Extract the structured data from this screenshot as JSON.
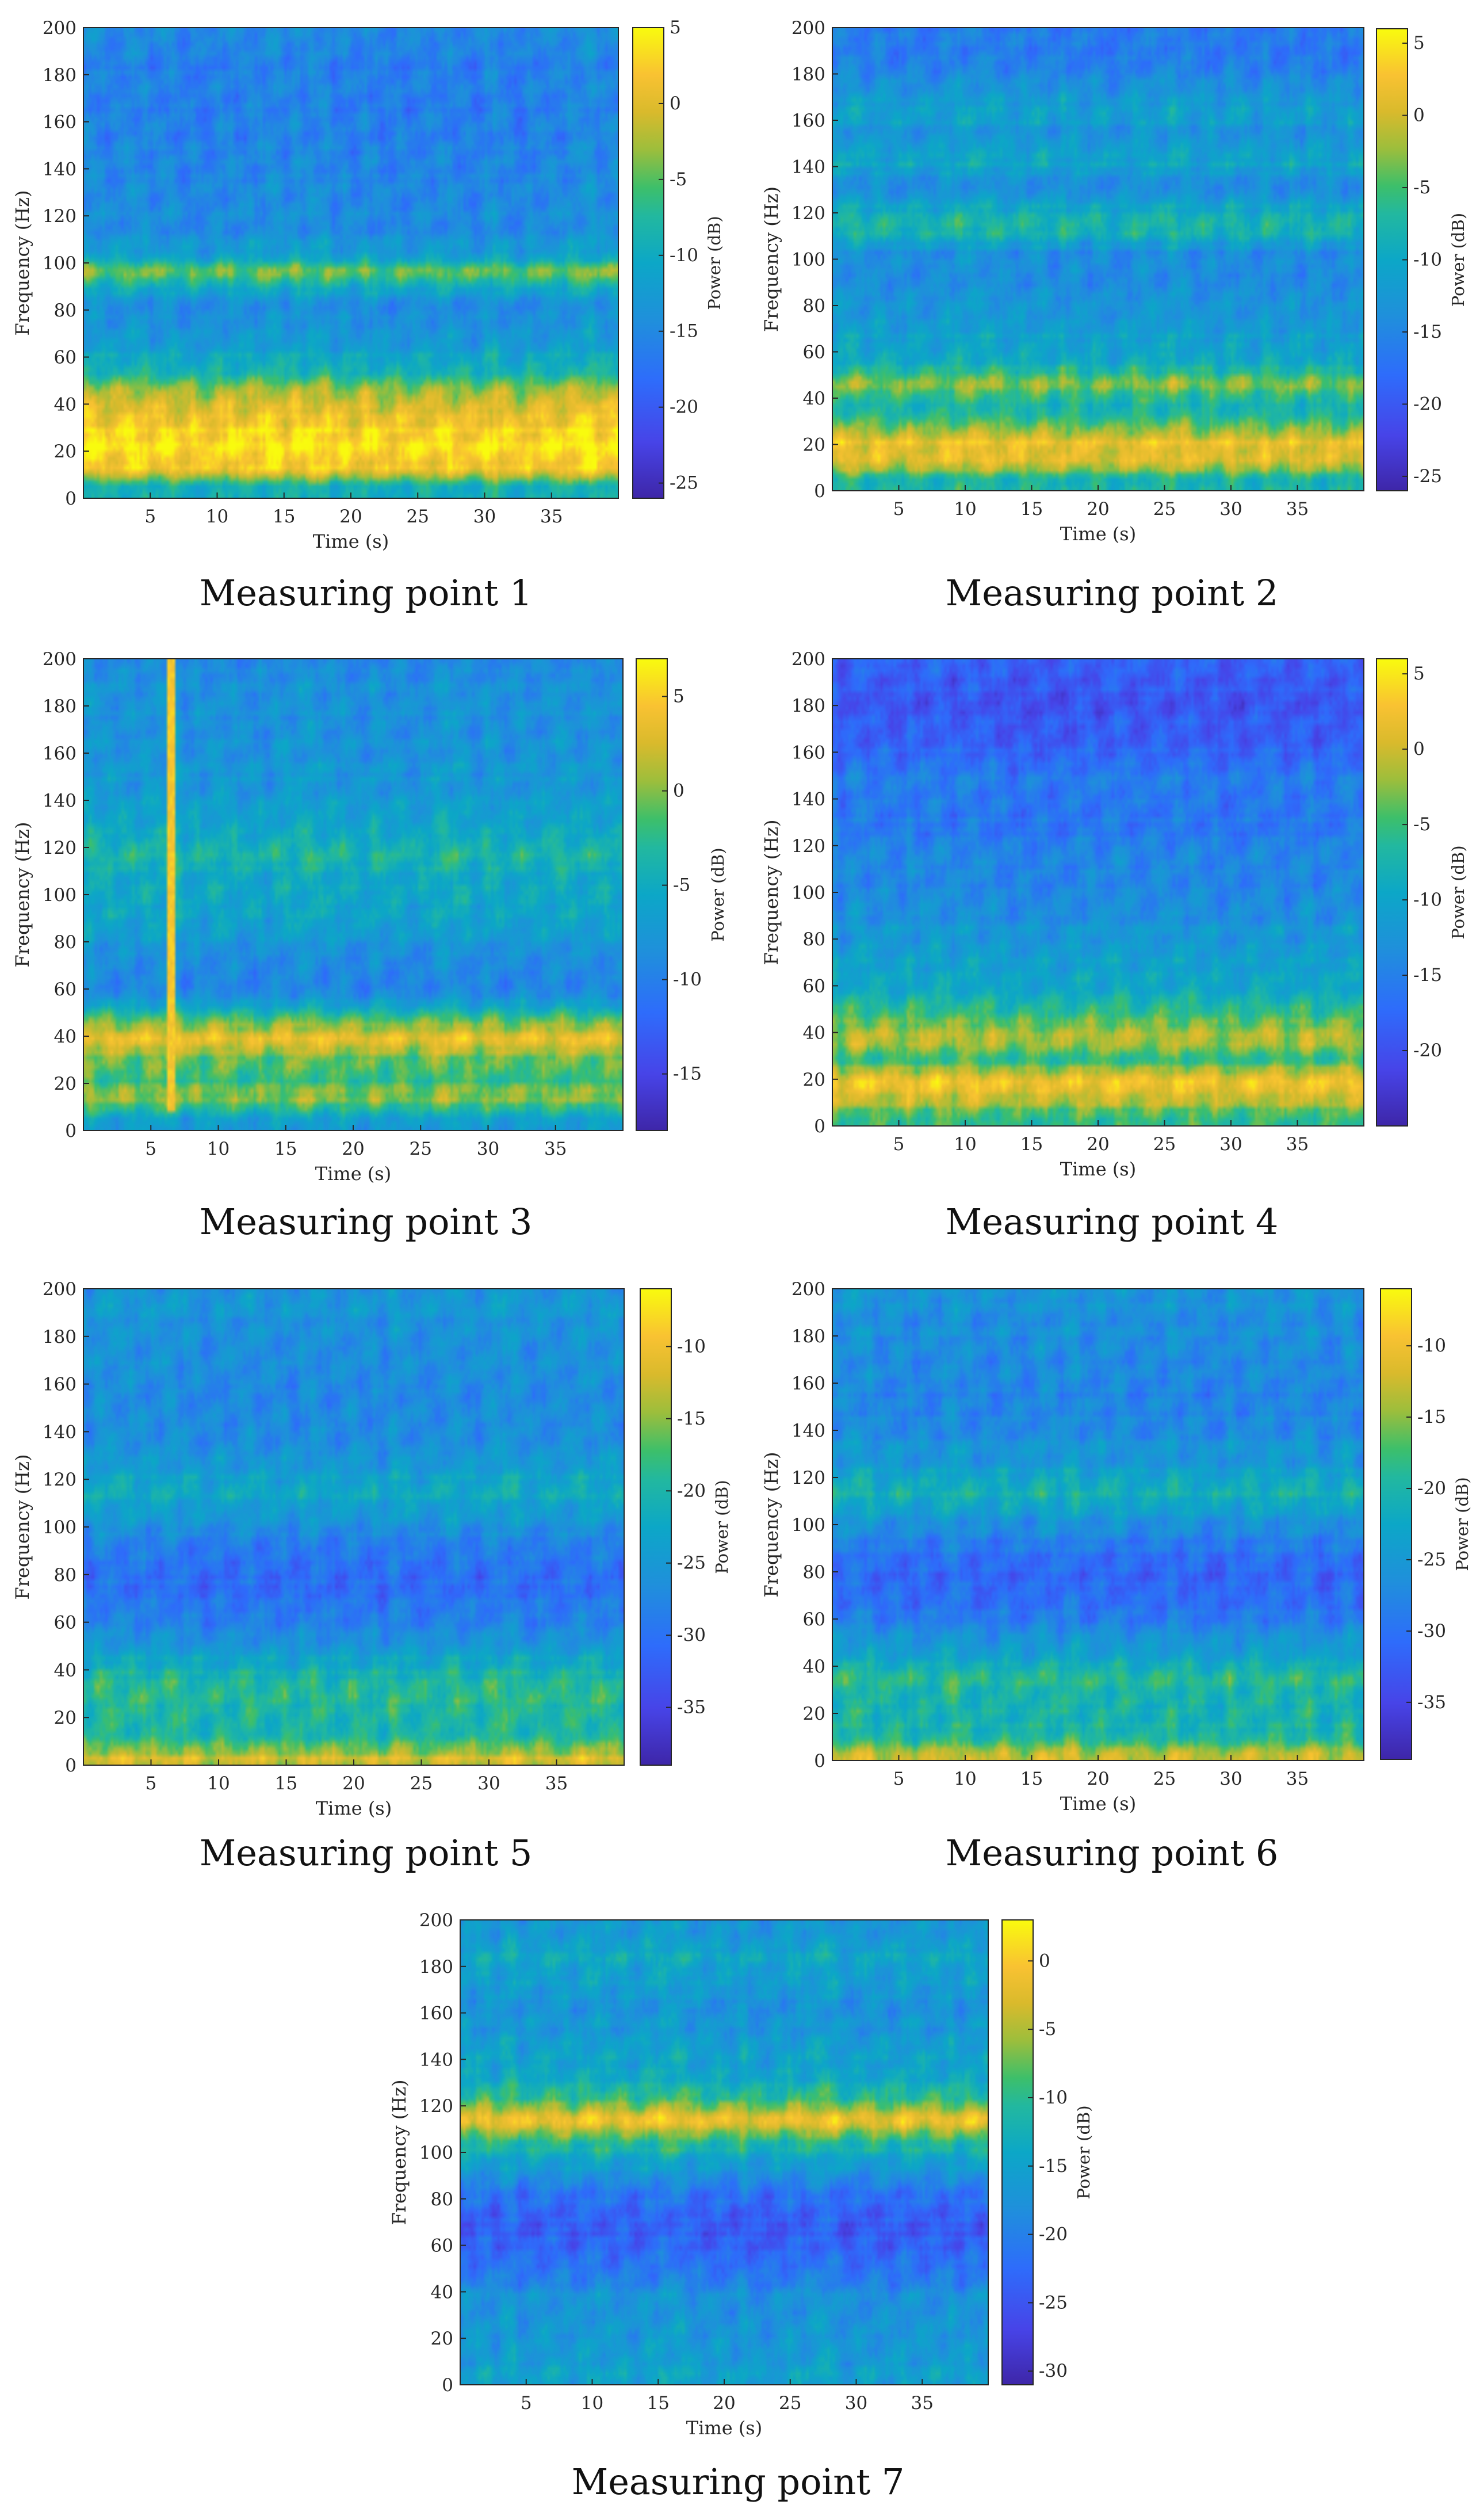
{
  "chart_data": [
    {
      "type": "heatmap",
      "caption": "Measuring point 1",
      "xlabel": "Time (s)",
      "ylabel": "Frequency (Hz)",
      "colorbar_label": "Power (dB)",
      "xlim": [
        0,
        40
      ],
      "ylim": [
        0,
        200
      ],
      "xticks": [
        "5",
        "10",
        "15",
        "20",
        "25",
        "30",
        "35"
      ],
      "yticks": [
        "0",
        "20",
        "40",
        "60",
        "80",
        "100",
        "120",
        "140",
        "160",
        "180",
        "200"
      ],
      "clim": [
        -26,
        5
      ],
      "cticks": [
        "5",
        "0",
        "-5",
        "-10",
        "-15",
        "-20",
        "-25"
      ],
      "bands": [
        {
          "f": 5,
          "level": 0.52
        },
        {
          "f": 12,
          "level": 0.9
        },
        {
          "f": 20,
          "level": 0.96
        },
        {
          "f": 28,
          "level": 0.94
        },
        {
          "f": 36,
          "level": 0.86
        },
        {
          "f": 44,
          "level": 0.78
        },
        {
          "f": 52,
          "level": 0.6
        },
        {
          "f": 62,
          "level": 0.48
        },
        {
          "f": 72,
          "level": 0.4
        },
        {
          "f": 82,
          "level": 0.38
        },
        {
          "f": 90,
          "level": 0.52
        },
        {
          "f": 96,
          "level": 0.74
        },
        {
          "f": 104,
          "level": 0.44
        },
        {
          "f": 115,
          "level": 0.38
        },
        {
          "f": 130,
          "level": 0.36
        },
        {
          "f": 148,
          "level": 0.34
        },
        {
          "f": 165,
          "level": 0.32
        },
        {
          "f": 182,
          "level": 0.33
        },
        {
          "f": 196,
          "level": 0.35
        }
      ]
    },
    {
      "type": "heatmap",
      "caption": "Measuring point 2",
      "xlabel": "Time (s)",
      "ylabel": "Frequency (Hz)",
      "colorbar_label": "Power (dB)",
      "xlim": [
        0,
        40
      ],
      "ylim": [
        0,
        200
      ],
      "xticks": [
        "5",
        "10",
        "15",
        "20",
        "25",
        "30",
        "35"
      ],
      "yticks": [
        "0",
        "20",
        "40",
        "60",
        "80",
        "100",
        "120",
        "140",
        "160",
        "180",
        "200"
      ],
      "clim": [
        -26,
        6
      ],
      "cticks": [
        "5",
        "0",
        "-5",
        "-10",
        "-15",
        "-20",
        "-25"
      ],
      "bands": [
        {
          "f": 5,
          "level": 0.58
        },
        {
          "f": 12,
          "level": 0.82
        },
        {
          "f": 20,
          "level": 0.88
        },
        {
          "f": 28,
          "level": 0.7
        },
        {
          "f": 36,
          "level": 0.56
        },
        {
          "f": 46,
          "level": 0.72
        },
        {
          "f": 56,
          "level": 0.52
        },
        {
          "f": 68,
          "level": 0.46
        },
        {
          "f": 80,
          "level": 0.42
        },
        {
          "f": 92,
          "level": 0.38
        },
        {
          "f": 102,
          "level": 0.36
        },
        {
          "f": 112,
          "level": 0.58
        },
        {
          "f": 122,
          "level": 0.5
        },
        {
          "f": 132,
          "level": 0.38
        },
        {
          "f": 142,
          "level": 0.5
        },
        {
          "f": 152,
          "level": 0.4
        },
        {
          "f": 164,
          "level": 0.48
        },
        {
          "f": 176,
          "level": 0.38
        },
        {
          "f": 190,
          "level": 0.3
        }
      ]
    },
    {
      "type": "heatmap",
      "caption": "Measuring point 3",
      "xlabel": "Time (s)",
      "ylabel": "Frequency (Hz)",
      "colorbar_label": "Power (dB)",
      "xlim": [
        0,
        40
      ],
      "ylim": [
        0,
        200
      ],
      "xticks": [
        "5",
        "10",
        "15",
        "20",
        "25",
        "30",
        "35"
      ],
      "yticks": [
        "0",
        "20",
        "40",
        "60",
        "80",
        "100",
        "120",
        "140",
        "160",
        "180",
        "200"
      ],
      "clim": [
        -18,
        7
      ],
      "cticks": [
        "5",
        "0",
        "-5",
        "-10",
        "-15"
      ],
      "bands": [
        {
          "f": 5,
          "level": 0.46
        },
        {
          "f": 14,
          "level": 0.74
        },
        {
          "f": 22,
          "level": 0.62
        },
        {
          "f": 30,
          "level": 0.68
        },
        {
          "f": 38,
          "level": 0.88
        },
        {
          "f": 46,
          "level": 0.7
        },
        {
          "f": 56,
          "level": 0.4
        },
        {
          "f": 64,
          "level": 0.34
        },
        {
          "f": 74,
          "level": 0.38
        },
        {
          "f": 84,
          "level": 0.44
        },
        {
          "f": 96,
          "level": 0.5
        },
        {
          "f": 108,
          "level": 0.52
        },
        {
          "f": 118,
          "level": 0.58
        },
        {
          "f": 130,
          "level": 0.48
        },
        {
          "f": 142,
          "level": 0.44
        },
        {
          "f": 156,
          "level": 0.42
        },
        {
          "f": 170,
          "level": 0.4
        },
        {
          "f": 184,
          "level": 0.4
        },
        {
          "f": 196,
          "level": 0.38
        }
      ]
    },
    {
      "type": "heatmap",
      "caption": "Measuring point 4",
      "xlabel": "Time (s)",
      "ylabel": "Frequency (Hz)",
      "colorbar_label": "Power (dB)",
      "xlim": [
        0,
        40
      ],
      "ylim": [
        0,
        200
      ],
      "xticks": [
        "5",
        "10",
        "15",
        "20",
        "25",
        "30",
        "35"
      ],
      "yticks": [
        "0",
        "20",
        "40",
        "60",
        "80",
        "100",
        "120",
        "140",
        "160",
        "180",
        "200"
      ],
      "clim": [
        -25,
        6
      ],
      "cticks": [
        "5",
        "0",
        "-5",
        "-10",
        "-15",
        "-20"
      ],
      "bands": [
        {
          "f": 4,
          "level": 0.62
        },
        {
          "f": 12,
          "level": 0.82
        },
        {
          "f": 20,
          "level": 0.88
        },
        {
          "f": 28,
          "level": 0.62
        },
        {
          "f": 38,
          "level": 0.8
        },
        {
          "f": 46,
          "level": 0.66
        },
        {
          "f": 56,
          "level": 0.52
        },
        {
          "f": 66,
          "level": 0.48
        },
        {
          "f": 76,
          "level": 0.44
        },
        {
          "f": 88,
          "level": 0.4
        },
        {
          "f": 100,
          "level": 0.34
        },
        {
          "f": 112,
          "level": 0.36
        },
        {
          "f": 124,
          "level": 0.3
        },
        {
          "f": 136,
          "level": 0.3
        },
        {
          "f": 148,
          "level": 0.32
        },
        {
          "f": 160,
          "level": 0.24
        },
        {
          "f": 170,
          "level": 0.2
        },
        {
          "f": 182,
          "level": 0.18
        },
        {
          "f": 194,
          "level": 0.22
        }
      ]
    },
    {
      "type": "heatmap",
      "caption": "Measuring point 5",
      "xlabel": "Time (s)",
      "ylabel": "Frequency (Hz)",
      "colorbar_label": "Power (dB)",
      "xlim": [
        0,
        40
      ],
      "ylim": [
        0,
        200
      ],
      "xticks": [
        "5",
        "10",
        "15",
        "20",
        "25",
        "30",
        "35"
      ],
      "yticks": [
        "0",
        "20",
        "40",
        "60",
        "80",
        "100",
        "120",
        "140",
        "160",
        "180",
        "200"
      ],
      "clim": [
        -39,
        -6
      ],
      "cticks": [
        "-10",
        "-15",
        "-20",
        "-25",
        "-30",
        "-35"
      ],
      "bands": [
        {
          "f": 3,
          "level": 0.82
        },
        {
          "f": 10,
          "level": 0.62
        },
        {
          "f": 18,
          "level": 0.56
        },
        {
          "f": 26,
          "level": 0.6
        },
        {
          "f": 34,
          "level": 0.62
        },
        {
          "f": 42,
          "level": 0.52
        },
        {
          "f": 52,
          "level": 0.4
        },
        {
          "f": 62,
          "level": 0.32
        },
        {
          "f": 70,
          "level": 0.28
        },
        {
          "f": 78,
          "level": 0.26
        },
        {
          "f": 88,
          "level": 0.3
        },
        {
          "f": 100,
          "level": 0.38
        },
        {
          "f": 114,
          "level": 0.52
        },
        {
          "f": 126,
          "level": 0.44
        },
        {
          "f": 138,
          "level": 0.38
        },
        {
          "f": 150,
          "level": 0.36
        },
        {
          "f": 164,
          "level": 0.38
        },
        {
          "f": 178,
          "level": 0.4
        },
        {
          "f": 192,
          "level": 0.42
        }
      ]
    },
    {
      "type": "heatmap",
      "caption": "Measuring point 6",
      "xlabel": "Time (s)",
      "ylabel": "Frequency (Hz)",
      "colorbar_label": "Power (dB)",
      "xlim": [
        0,
        40
      ],
      "ylim": [
        0,
        200
      ],
      "xticks": [
        "5",
        "10",
        "15",
        "20",
        "25",
        "30",
        "35"
      ],
      "yticks": [
        "0",
        "20",
        "40",
        "60",
        "80",
        "100",
        "120",
        "140",
        "160",
        "180",
        "200"
      ],
      "clim": [
        -39,
        -6
      ],
      "cticks": [
        "-10",
        "-15",
        "-20",
        "-25",
        "-30",
        "-35"
      ],
      "bands": [
        {
          "f": 3,
          "level": 0.8
        },
        {
          "f": 10,
          "level": 0.6
        },
        {
          "f": 18,
          "level": 0.54
        },
        {
          "f": 26,
          "level": 0.58
        },
        {
          "f": 34,
          "level": 0.6
        },
        {
          "f": 42,
          "level": 0.52
        },
        {
          "f": 52,
          "level": 0.4
        },
        {
          "f": 62,
          "level": 0.3
        },
        {
          "f": 70,
          "level": 0.26
        },
        {
          "f": 78,
          "level": 0.24
        },
        {
          "f": 88,
          "level": 0.28
        },
        {
          "f": 100,
          "level": 0.38
        },
        {
          "f": 114,
          "level": 0.56
        },
        {
          "f": 126,
          "level": 0.44
        },
        {
          "f": 138,
          "level": 0.38
        },
        {
          "f": 150,
          "level": 0.34
        },
        {
          "f": 164,
          "level": 0.36
        },
        {
          "f": 178,
          "level": 0.38
        },
        {
          "f": 192,
          "level": 0.4
        }
      ]
    },
    {
      "type": "heatmap",
      "caption": "Measuring point 7",
      "xlabel": "Time (s)",
      "ylabel": "Frequency (Hz)",
      "colorbar_label": "Power (dB)",
      "xlim": [
        0,
        40
      ],
      "ylim": [
        0,
        200
      ],
      "xticks": [
        "5",
        "10",
        "15",
        "20",
        "25",
        "30",
        "35"
      ],
      "yticks": [
        "0",
        "20",
        "40",
        "60",
        "80",
        "100",
        "120",
        "140",
        "160",
        "180",
        "200"
      ],
      "clim": [
        -31,
        3
      ],
      "cticks": [
        "0",
        "-5",
        "-10",
        "-15",
        "-20",
        "-25",
        "-30"
      ],
      "bands": [
        {
          "f": 4,
          "level": 0.48
        },
        {
          "f": 12,
          "level": 0.44
        },
        {
          "f": 20,
          "level": 0.42
        },
        {
          "f": 30,
          "level": 0.4
        },
        {
          "f": 40,
          "level": 0.38
        },
        {
          "f": 50,
          "level": 0.3
        },
        {
          "f": 58,
          "level": 0.24
        },
        {
          "f": 66,
          "level": 0.2
        },
        {
          "f": 74,
          "level": 0.22
        },
        {
          "f": 84,
          "level": 0.3
        },
        {
          "f": 96,
          "level": 0.48
        },
        {
          "f": 106,
          "level": 0.64
        },
        {
          "f": 114,
          "level": 0.92
        },
        {
          "f": 124,
          "level": 0.6
        },
        {
          "f": 134,
          "level": 0.5
        },
        {
          "f": 146,
          "level": 0.46
        },
        {
          "f": 158,
          "level": 0.4
        },
        {
          "f": 172,
          "level": 0.44
        },
        {
          "f": 184,
          "level": 0.5
        },
        {
          "f": 196,
          "level": 0.42
        }
      ]
    }
  ]
}
